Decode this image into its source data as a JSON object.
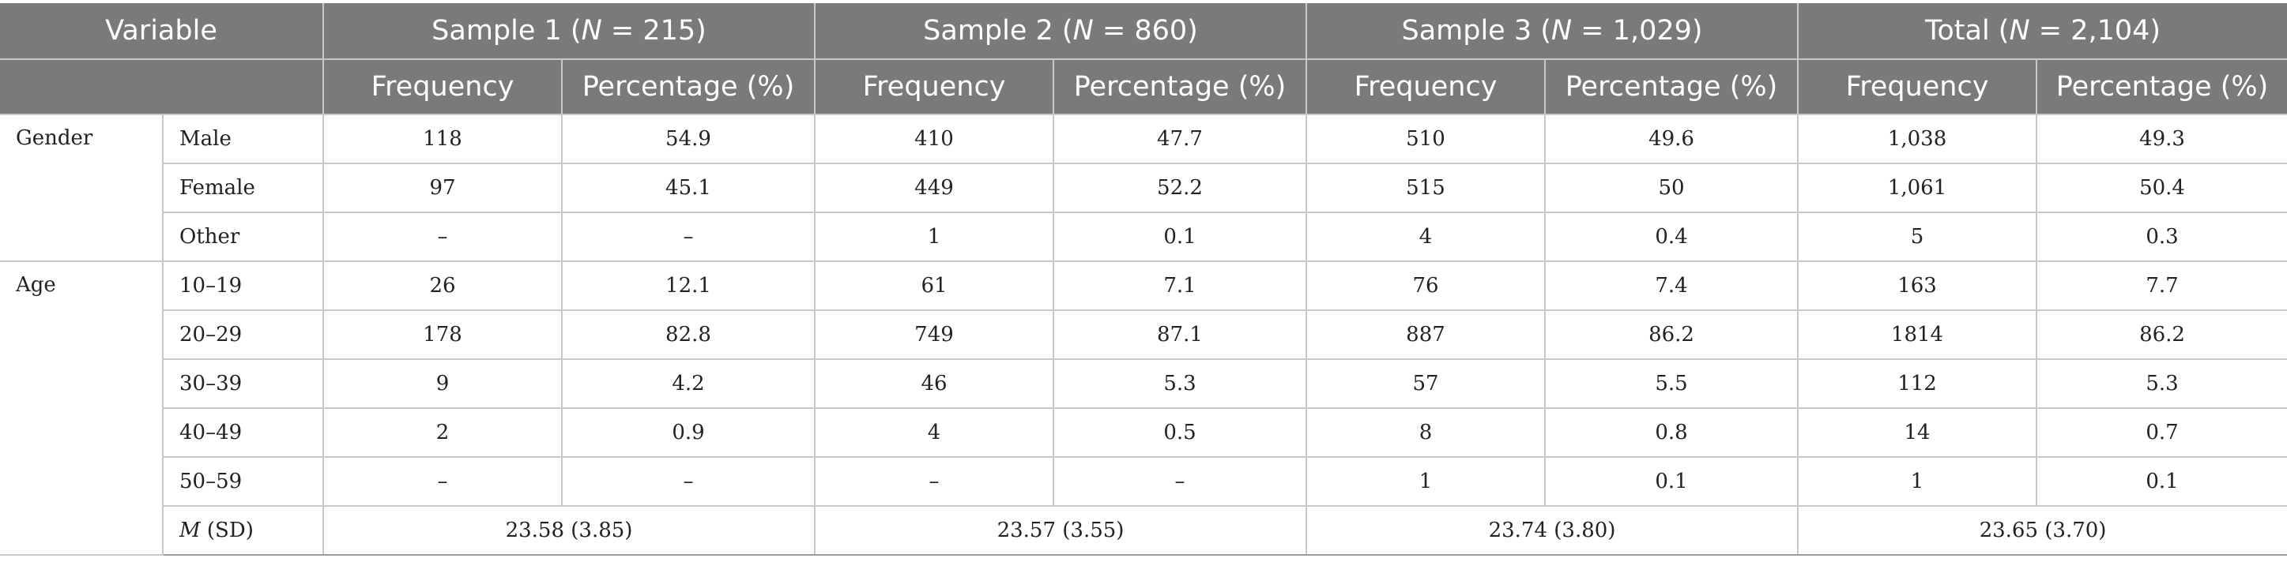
{
  "table": {
    "header": {
      "variable": "Variable",
      "groups": [
        {
          "prefix": "Sample 1 (",
          "n_symbol": "N",
          "suffix": " = 215)"
        },
        {
          "prefix": "Sample 2 (",
          "n_symbol": "N",
          "suffix": " = 860)"
        },
        {
          "prefix": "Sample 3 (",
          "n_symbol": "N",
          "suffix": " = 1,029)"
        },
        {
          "prefix": "Total (",
          "n_symbol": "N",
          "suffix": " = 2,104)"
        }
      ],
      "sub": [
        "Frequency",
        "Percentage (%)"
      ]
    },
    "gender": {
      "label": "Gender",
      "rows": [
        {
          "label": "Male",
          "vals": [
            "118",
            "54.9",
            "410",
            "47.7",
            "510",
            "49.6",
            "1,038",
            "49.3"
          ]
        },
        {
          "label": "Female",
          "vals": [
            "97",
            "45.1",
            "449",
            "52.2",
            "515",
            "50",
            "1,061",
            "50.4"
          ]
        },
        {
          "label": "Other",
          "vals": [
            "–",
            "–",
            "1",
            "0.1",
            "4",
            "0.4",
            "5",
            "0.3"
          ]
        }
      ]
    },
    "age": {
      "label": "Age",
      "rows": [
        {
          "label": "10–19",
          "vals": [
            "26",
            "12.1",
            "61",
            "7.1",
            "76",
            "7.4",
            "163",
            "7.7"
          ]
        },
        {
          "label": "20–29",
          "vals": [
            "178",
            "82.8",
            "749",
            "87.1",
            "887",
            "86.2",
            "1814",
            "86.2"
          ]
        },
        {
          "label": "30–39",
          "vals": [
            "9",
            "4.2",
            "46",
            "5.3",
            "57",
            "5.5",
            "112",
            "5.3"
          ]
        },
        {
          "label": "40–49",
          "vals": [
            "2",
            "0.9",
            "4",
            "0.5",
            "8",
            "0.8",
            "14",
            "0.7"
          ]
        },
        {
          "label": "50–59",
          "vals": [
            "–",
            "–",
            "–",
            "–",
            "1",
            "0.1",
            "1",
            "0.1"
          ]
        }
      ],
      "mean": {
        "m_symbol": "M",
        "label_rest": " (SD)",
        "vals": [
          "23.58 (3.85)",
          "23.57 (3.55)",
          "23.74 (3.80)",
          "23.65 (3.70)"
        ]
      }
    }
  }
}
